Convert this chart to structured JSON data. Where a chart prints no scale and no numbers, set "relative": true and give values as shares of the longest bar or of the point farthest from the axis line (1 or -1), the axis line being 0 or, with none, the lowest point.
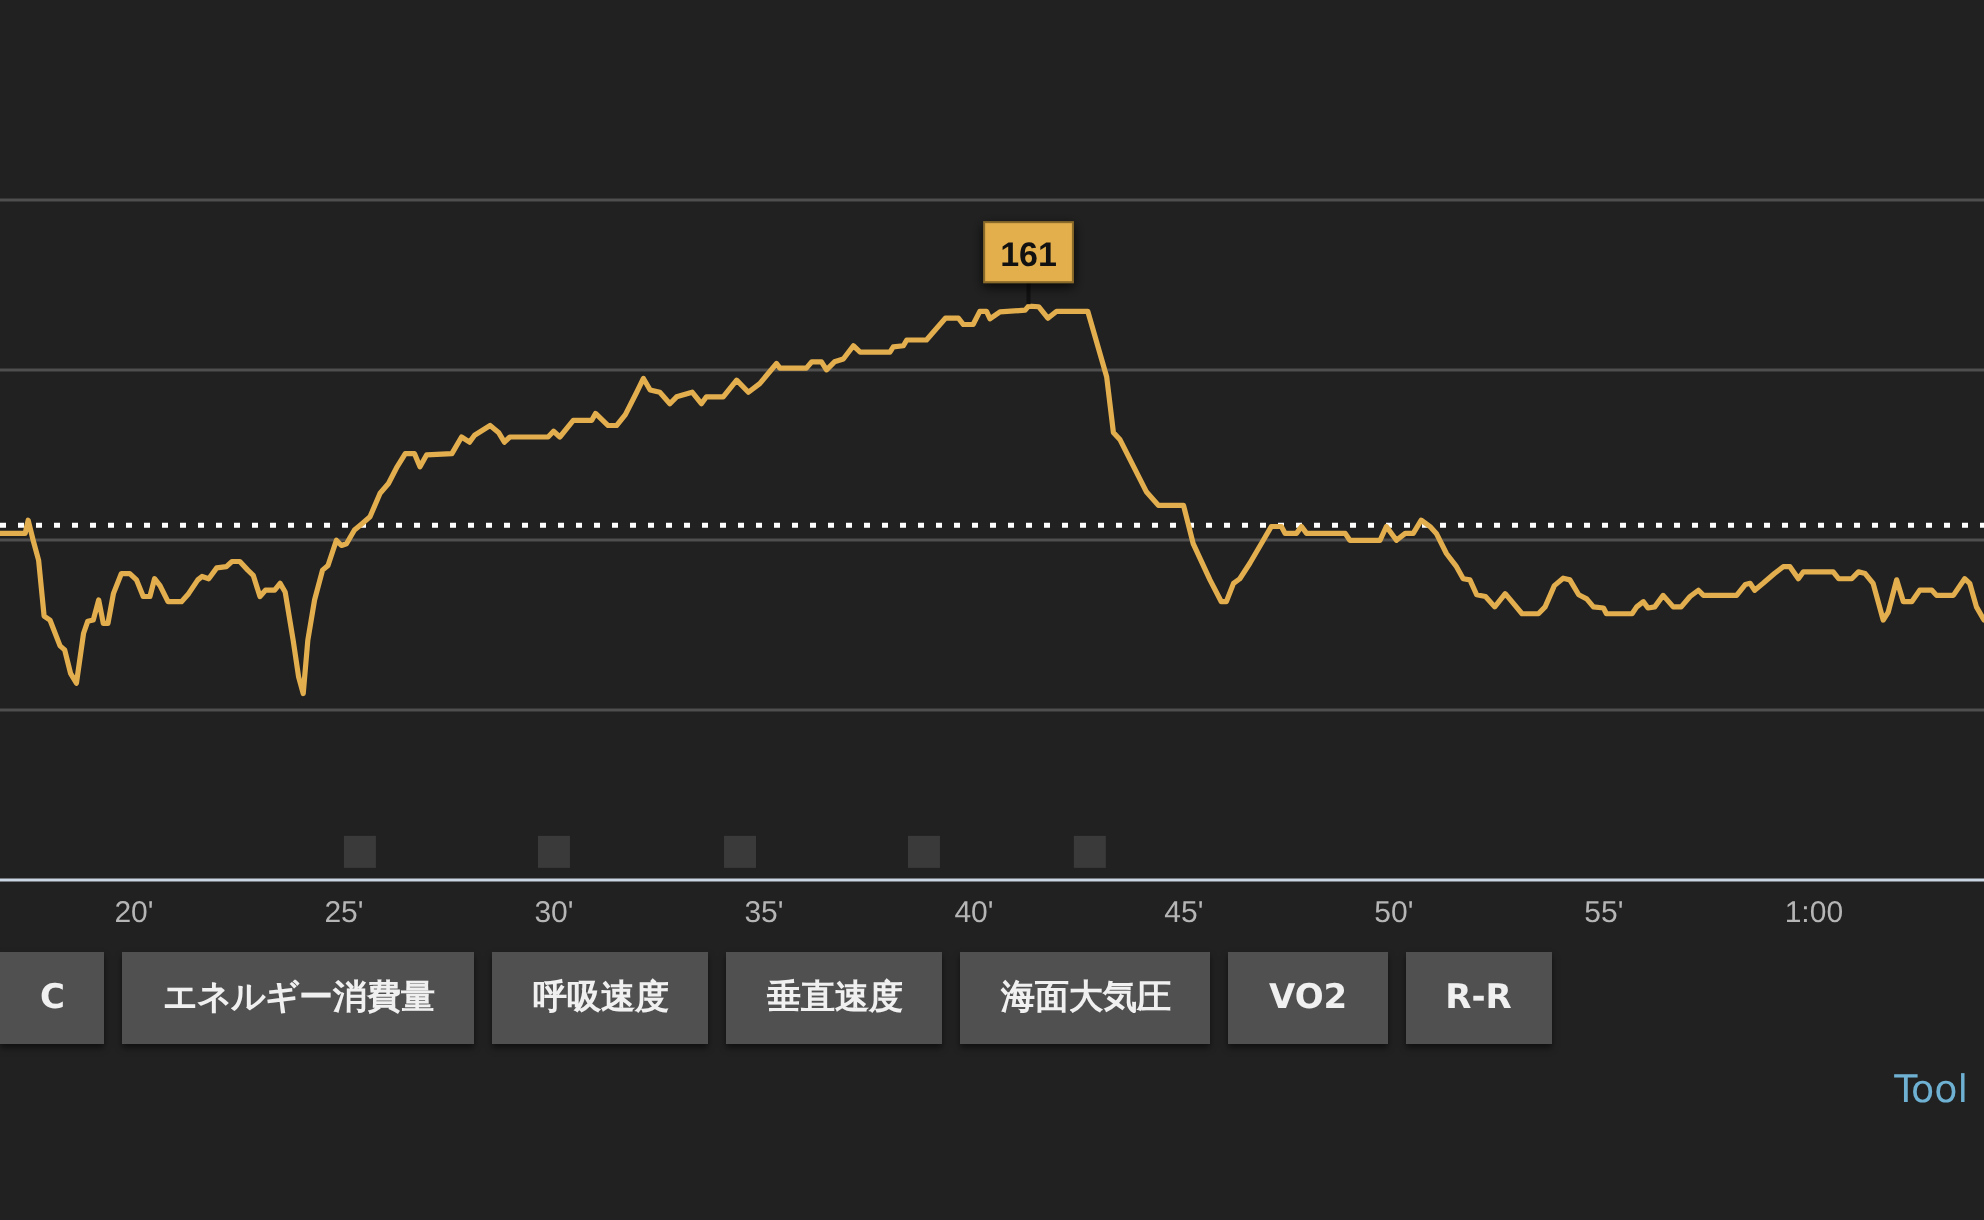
{
  "chart_data": {
    "type": "line",
    "relative": true,
    "grid": "y",
    "tick_labels": "x",
    "xlim": [
      16.81,
      64.05
    ],
    "xticks": [
      {
        "value": 20,
        "label": "20'"
      },
      {
        "value": 25,
        "label": "25'"
      },
      {
        "value": 30,
        "label": "30'"
      },
      {
        "value": 35,
        "label": "35'"
      },
      {
        "value": 40,
        "label": "40'"
      },
      {
        "value": 45,
        "label": "45'"
      },
      {
        "value": 50,
        "label": "50'"
      },
      {
        "value": 55,
        "label": "55'"
      },
      {
        "value": 60,
        "label": "1:00"
      }
    ],
    "ref_lines": [
      {
        "axis": "y",
        "value": 0.618,
        "color": "#ffffff",
        "line_style": "dotted"
      }
    ],
    "annotations": [
      {
        "text": "161",
        "x": 41.3,
        "y": 1
      },
      "C",
      "エネルギー消費量",
      "呼吸速度",
      "垂直速度",
      "海面大気圧",
      "VO2",
      "R-R",
      "Tool"
    ],
    "series": [
      {
        "color": "#e3af4e",
        "x": [
          16.81,
          17.41,
          17.48,
          17.6,
          17.73,
          17.86,
          18.0,
          18.24,
          18.35,
          18.49,
          18.63,
          18.8,
          18.9,
          19.03,
          19.16,
          19.27,
          19.38,
          19.51,
          19.7,
          19.9,
          20.06,
          20.22,
          20.38,
          20.49,
          20.62,
          20.81,
          21.13,
          21.3,
          21.52,
          21.62,
          21.78,
          21.97,
          22.2,
          22.33,
          22.52,
          22.71,
          22.84,
          23.0,
          23.13,
          23.35,
          23.48,
          23.6,
          23.79,
          23.92,
          24.03,
          24.14,
          24.3,
          24.49,
          24.62,
          24.82,
          24.94,
          25.06,
          25.25,
          25.43,
          25.62,
          25.86,
          26.06,
          26.25,
          26.46,
          26.68,
          26.81,
          26.97,
          27.57,
          27.8,
          27.99,
          28.11,
          28.48,
          28.68,
          28.82,
          28.95,
          29.86,
          29.99,
          30.14,
          30.46,
          30.9,
          30.99,
          31.29,
          31.49,
          31.7,
          31.97,
          32.13,
          32.29,
          32.52,
          32.76,
          32.92,
          33.29,
          33.51,
          33.63,
          34.03,
          34.35,
          34.63,
          34.9,
          35.3,
          35.38,
          36.01,
          36.14,
          36.37,
          36.49,
          36.68,
          36.89,
          37.13,
          37.29,
          38.0,
          38.08,
          38.32,
          38.4,
          38.87,
          39.32,
          39.63,
          39.75,
          39.98,
          40.14,
          40.3,
          40.38,
          40.62,
          41.22,
          41.3,
          41.54,
          41.76,
          41.97,
          42.71,
          43.16,
          43.32,
          43.48,
          44.11,
          44.39,
          44.99,
          45.22,
          45.62,
          45.89,
          46.01,
          46.18,
          46.33,
          46.57,
          46.89,
          47.08,
          47.32,
          47.41,
          47.68,
          47.8,
          47.92,
          48.84,
          48.95,
          49.67,
          49.82,
          50.06,
          50.27,
          50.46,
          50.65,
          50.86,
          51.01,
          51.25,
          51.49,
          51.65,
          51.81,
          51.97,
          52.18,
          52.4,
          52.65,
          52.81,
          53.05,
          53.44,
          53.6,
          53.82,
          54.03,
          54.19,
          54.4,
          54.59,
          54.75,
          54.99,
          55.06,
          55.67,
          55.78,
          55.94,
          56.05,
          56.21,
          56.41,
          56.65,
          56.84,
          57.05,
          57.25,
          57.37,
          58.16,
          58.37,
          58.48,
          58.59,
          58.79,
          59.06,
          59.27,
          59.43,
          59.63,
          59.75,
          60.46,
          60.59,
          60.9,
          61.06,
          61.22,
          61.41,
          61.65,
          61.77,
          61.97,
          62.13,
          62.33,
          62.52,
          62.81,
          62.92,
          63.32,
          63.59,
          63.71,
          63.87,
          64.05
        ],
        "values": [
          0.604,
          0.604,
          0.627,
          0.592,
          0.557,
          0.46,
          0.453,
          0.408,
          0.401,
          0.36,
          0.343,
          0.43,
          0.451,
          0.453,
          0.488,
          0.447,
          0.447,
          0.499,
          0.534,
          0.534,
          0.523,
          0.494,
          0.494,
          0.525,
          0.513,
          0.485,
          0.485,
          0.499,
          0.523,
          0.529,
          0.525,
          0.544,
          0.546,
          0.555,
          0.555,
          0.54,
          0.531,
          0.494,
          0.505,
          0.505,
          0.517,
          0.502,
          0.418,
          0.354,
          0.325,
          0.418,
          0.488,
          0.54,
          0.548,
          0.592,
          0.583,
          0.586,
          0.61,
          0.621,
          0.633,
          0.674,
          0.691,
          0.718,
          0.743,
          0.743,
          0.72,
          0.741,
          0.743,
          0.772,
          0.763,
          0.775,
          0.792,
          0.78,
          0.763,
          0.772,
          0.772,
          0.782,
          0.772,
          0.801,
          0.801,
          0.813,
          0.792,
          0.792,
          0.811,
          0.85,
          0.874,
          0.854,
          0.85,
          0.83,
          0.842,
          0.85,
          0.83,
          0.842,
          0.842,
          0.871,
          0.85,
          0.865,
          0.9,
          0.892,
          0.892,
          0.903,
          0.903,
          0.889,
          0.903,
          0.908,
          0.931,
          0.92,
          0.92,
          0.929,
          0.931,
          0.941,
          0.941,
          0.979,
          0.979,
          0.968,
          0.968,
          0.991,
          0.991,
          0.978,
          0.99,
          0.993,
          1,
          0.999,
          0.979,
          0.991,
          0.991,
          0.877,
          0.78,
          0.767,
          0.676,
          0.653,
          0.653,
          0.586,
          0.523,
          0.485,
          0.485,
          0.517,
          0.525,
          0.552,
          0.592,
          0.616,
          0.616,
          0.604,
          0.604,
          0.616,
          0.604,
          0.604,
          0.592,
          0.592,
          0.616,
          0.592,
          0.604,
          0.604,
          0.627,
          0.616,
          0.604,
          0.569,
          0.546,
          0.525,
          0.523,
          0.497,
          0.494,
          0.476,
          0.499,
          0.485,
          0.464,
          0.464,
          0.476,
          0.513,
          0.526,
          0.523,
          0.497,
          0.49,
          0.476,
          0.474,
          0.464,
          0.464,
          0.476,
          0.485,
          0.474,
          0.476,
          0.496,
          0.476,
          0.476,
          0.494,
          0.505,
          0.496,
          0.496,
          0.515,
          0.517,
          0.505,
          0.517,
          0.534,
          0.546,
          0.546,
          0.525,
          0.537,
          0.537,
          0.525,
          0.525,
          0.537,
          0.534,
          0.517,
          0.453,
          0.467,
          0.523,
          0.485,
          0.485,
          0.505,
          0.505,
          0.496,
          0.496,
          0.525,
          0.517,
          0.476,
          0.453
        ]
      },
      {
        "type": "scatter",
        "marker": "square",
        "color": "#3a3a3a",
        "x": [
          25.38,
          30.0,
          34.43,
          38.81,
          42.76
        ],
        "values": [
          0.049,
          0.049,
          0.049,
          0.049,
          0.049
        ]
      }
    ]
  }
}
